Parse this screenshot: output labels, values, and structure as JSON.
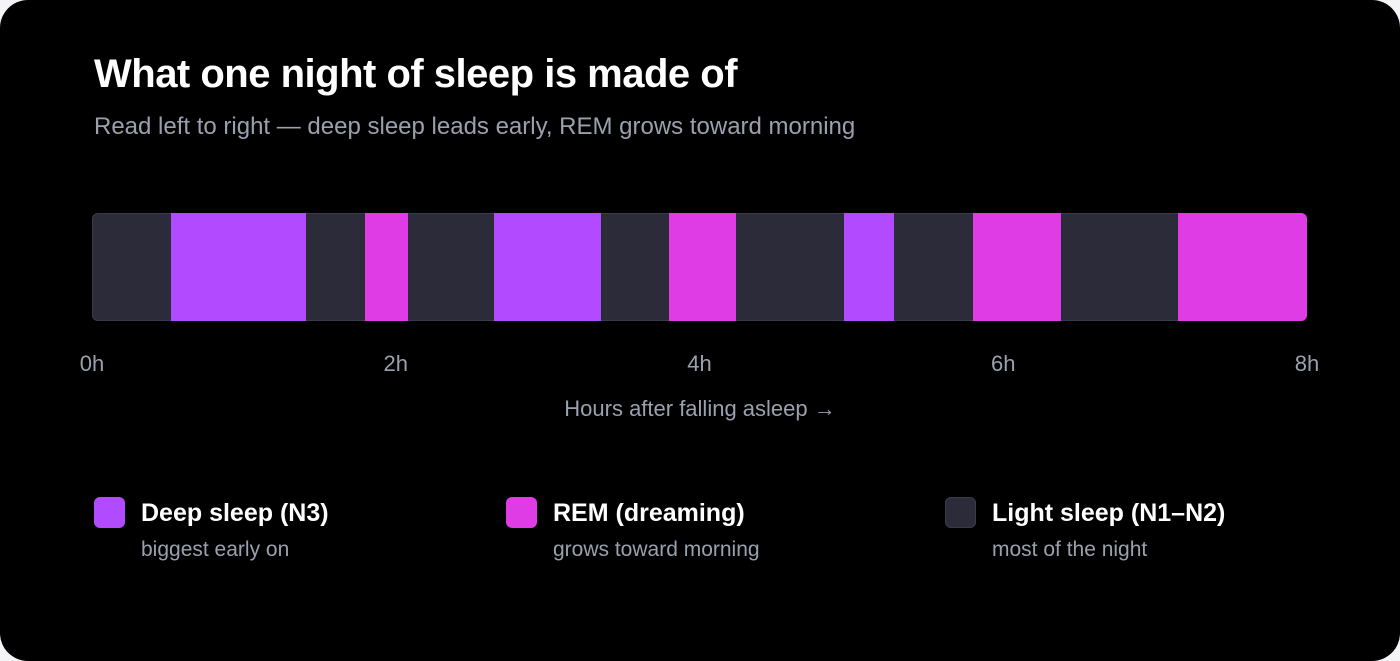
{
  "title": "What one night of sleep is made of",
  "subtitle": "Read left to right — deep sleep leads early, REM grows toward morning",
  "chart_data": {
    "type": "bar",
    "orientation": "horizontal-timeline",
    "xlabel": "Hours after falling asleep →",
    "xlim": [
      0,
      8
    ],
    "ticks": [
      {
        "value": 0,
        "label": "0h"
      },
      {
        "value": 2,
        "label": "2h"
      },
      {
        "value": 4,
        "label": "4h"
      },
      {
        "value": 6,
        "label": "6h"
      },
      {
        "value": 8,
        "label": "8h"
      }
    ],
    "segments": [
      {
        "stage": "light",
        "start": 0.0,
        "end": 0.52
      },
      {
        "stage": "deep",
        "start": 0.52,
        "end": 1.41
      },
      {
        "stage": "light",
        "start": 1.41,
        "end": 1.8
      },
      {
        "stage": "rem",
        "start": 1.8,
        "end": 2.08
      },
      {
        "stage": "light",
        "start": 2.08,
        "end": 2.65
      },
      {
        "stage": "deep",
        "start": 2.65,
        "end": 3.35
      },
      {
        "stage": "light",
        "start": 3.35,
        "end": 3.8
      },
      {
        "stage": "rem",
        "start": 3.8,
        "end": 4.24
      },
      {
        "stage": "light",
        "start": 4.24,
        "end": 4.95
      },
      {
        "stage": "deep",
        "start": 4.95,
        "end": 5.28
      },
      {
        "stage": "light",
        "start": 5.28,
        "end": 5.8
      },
      {
        "stage": "rem",
        "start": 5.8,
        "end": 6.38
      },
      {
        "stage": "light",
        "start": 6.38,
        "end": 7.15
      },
      {
        "stage": "rem",
        "start": 7.15,
        "end": 8.0
      }
    ],
    "legend": [
      {
        "key": "deep",
        "name": "Deep sleep (N3)",
        "description": "biggest early on",
        "color": "#b24bff"
      },
      {
        "key": "rem",
        "name": "REM (dreaming)",
        "description": "grows toward morning",
        "color": "#e03ce6"
      },
      {
        "key": "light",
        "name": "Light sleep (N1–N2)",
        "description": "most of the night",
        "color": "#2b2b3a"
      }
    ]
  }
}
